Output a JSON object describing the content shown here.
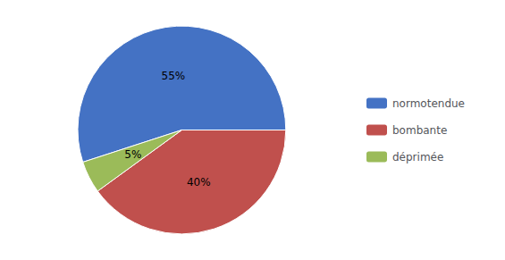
{
  "chart_data": {
    "type": "pie",
    "labels": [
      "normotendue",
      "bombante",
      "déprimée"
    ],
    "values": [
      55,
      40,
      5
    ],
    "value_labels": [
      "55%",
      "40%",
      "5%"
    ],
    "colors": [
      "#4472C4",
      "#C0504D",
      "#9BBB59"
    ],
    "data_labels": true,
    "legend": "right"
  }
}
